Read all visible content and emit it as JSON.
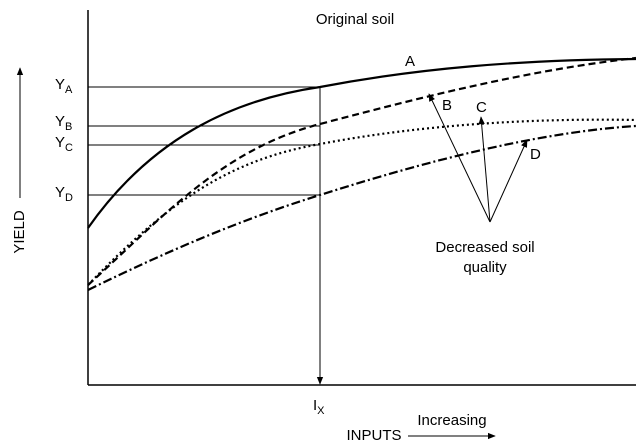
{
  "title": "Original soil",
  "curves": {
    "a": "A",
    "b": "B",
    "c": "C",
    "d": "D"
  },
  "annotation": {
    "line1": "Decreased soil",
    "line2": "quality"
  },
  "y_axis": {
    "label": "YIELD",
    "levels": [
      {
        "main": "Y",
        "sub": "A"
      },
      {
        "main": "Y",
        "sub": "B"
      },
      {
        "main": "Y",
        "sub": "C"
      },
      {
        "main": "Y",
        "sub": "D"
      }
    ]
  },
  "x_axis": {
    "label": "INPUTS",
    "direction": "Increasing",
    "marker": {
      "main": "I",
      "sub": "X"
    }
  }
}
